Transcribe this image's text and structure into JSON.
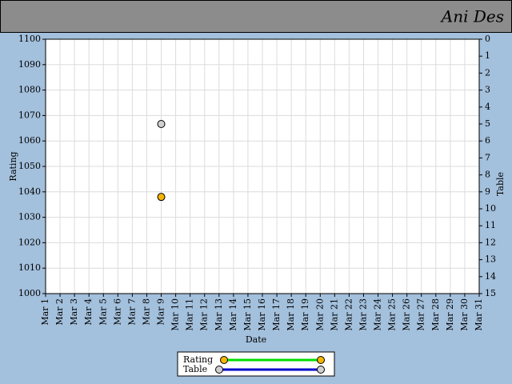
{
  "chart_data": {
    "type": "scatter",
    "title": "Ani Des",
    "x_label": "Date",
    "y_label": "Rating",
    "y2_label": "Table",
    "categories": [
      "Mar 1",
      "Mar 2",
      "Mar 3",
      "Mar 4",
      "Mar 5",
      "Mar 6",
      "Mar 7",
      "Mar 8",
      "Mar 9",
      "Mar 10",
      "Mar 11",
      "Mar 12",
      "Mar 13",
      "Mar 14",
      "Mar 15",
      "Mar 16",
      "Mar 17",
      "Mar 18",
      "Mar 19",
      "Mar 20",
      "Mar 21",
      "Mar 22",
      "Mar 23",
      "Mar 24",
      "Mar 25",
      "Mar 26",
      "Mar 27",
      "Mar 28",
      "Mar 29",
      "Mar 30",
      "Mar 31"
    ],
    "series": [
      {
        "name": "Rating",
        "color": "#f5b400",
        "line_color": "#00dd00",
        "values": [
          null,
          null,
          null,
          null,
          null,
          null,
          null,
          null,
          1038,
          null,
          null,
          null,
          null,
          null,
          null,
          null,
          null,
          null,
          null,
          null,
          null,
          null,
          null,
          null,
          null,
          null,
          null,
          null,
          null,
          null,
          null
        ]
      },
      {
        "name": "Table",
        "color": "#d0d0d0",
        "line_color": "#0000cc",
        "axis": "y2",
        "values": [
          null,
          null,
          null,
          null,
          null,
          null,
          null,
          null,
          5,
          null,
          null,
          null,
          null,
          null,
          null,
          null,
          null,
          null,
          null,
          null,
          null,
          null,
          null,
          null,
          null,
          null,
          null,
          null,
          null,
          null,
          null
        ]
      }
    ],
    "ylim": [
      1000,
      1100
    ],
    "yticks": [
      1000,
      1010,
      1020,
      1030,
      1040,
      1050,
      1060,
      1070,
      1080,
      1090,
      1100
    ],
    "y2lim": [
      0,
      15
    ],
    "y2ticks": [
      0,
      1,
      2,
      3,
      4,
      5,
      6,
      7,
      8,
      9,
      10,
      11,
      12,
      13,
      14,
      15
    ],
    "y2_inverted": true,
    "grid": true
  }
}
